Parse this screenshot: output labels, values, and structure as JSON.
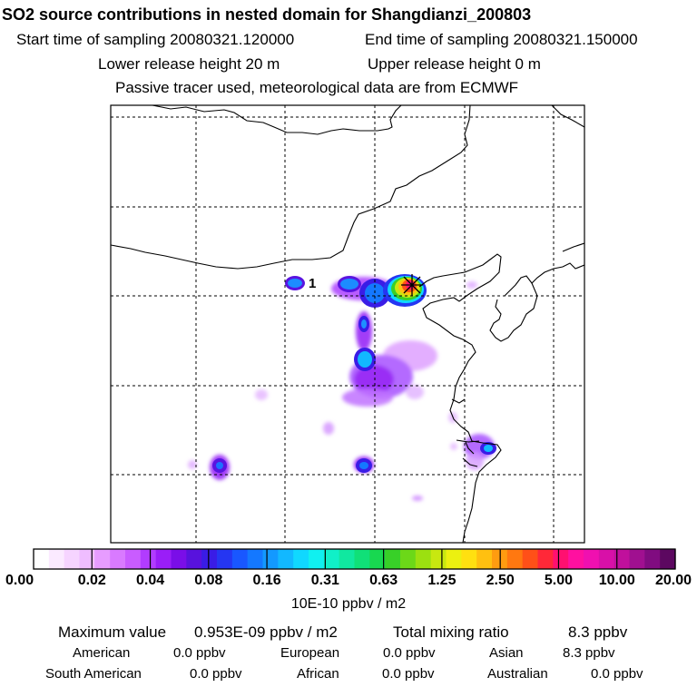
{
  "header": {
    "title": "SO2 source contributions in nested domain for Shangdianzi_200803",
    "start_label": "Start time of sampling 20080321.120000",
    "end_label": "End time of sampling 20080321.150000",
    "lower_label": "Lower release height   20 m",
    "upper_label": "Upper release height    0 m",
    "tracer_label": "Passive tracer used, meteorological data are from ECMWF"
  },
  "chart_data": {
    "type": "heatmap",
    "map_marker_label": "1",
    "colorbar": {
      "ticks": [
        "0.00",
        "0.02",
        "0.04",
        "0.08",
        "0.16",
        "0.31",
        "0.63",
        "1.25",
        "2.50",
        "5.00",
        "10.00",
        "20.00"
      ],
      "unit_label": "10E-10 ppbv / m2",
      "colors": [
        "#ffffff",
        "#fbeaff",
        "#f6d4ff",
        "#efbdff",
        "#e79cff",
        "#d97aff",
        "#c95cff",
        "#b13cff",
        "#9a1ef7",
        "#7a0ee8",
        "#5812dd",
        "#3a1ce6",
        "#2536f2",
        "#1957ff",
        "#1478ff",
        "#1399ff",
        "#12b8ff",
        "#10d8ff",
        "#10f0f0",
        "#10f0c8",
        "#10e8a0",
        "#10e078",
        "#18d850",
        "#38d028",
        "#6cd818",
        "#9ce010",
        "#c8e810",
        "#ecf010",
        "#ffe010",
        "#ffc010",
        "#ff9c10",
        "#ff7810",
        "#ff5018",
        "#ff2838",
        "#ff1070",
        "#ff10a0",
        "#f010b0",
        "#d810a8",
        "#c0109c",
        "#a01090",
        "#800c80",
        "#5c0860"
      ]
    }
  },
  "footer": {
    "max_label": "Maximum value",
    "max_value": "0.953E-09 ppbv / m2",
    "total_label": "Total mixing ratio",
    "total_value": "8.3 ppbv",
    "regions": [
      {
        "name": "American",
        "value": "0.0 ppbv"
      },
      {
        "name": "European",
        "value": "0.0 ppbv"
      },
      {
        "name": "Asian",
        "value": "8.3 ppbv"
      },
      {
        "name": "South American",
        "value": "0.0 ppbv"
      },
      {
        "name": "African",
        "value": "0.0 ppbv"
      },
      {
        "name": "Australian",
        "value": "0.0 ppbv"
      }
    ]
  }
}
